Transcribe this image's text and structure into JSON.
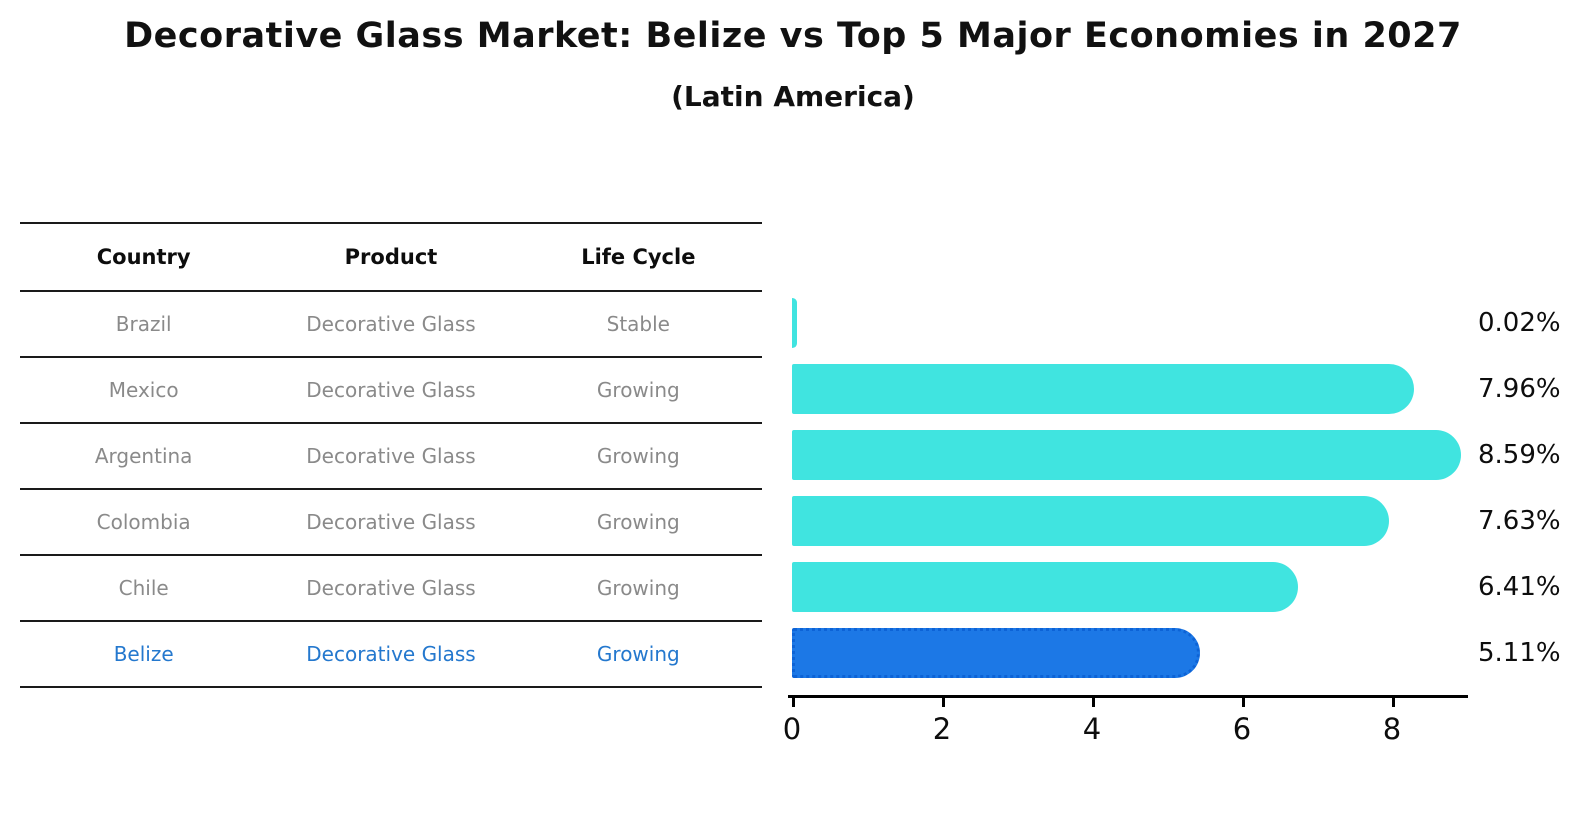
{
  "title": "Decorative Glass Market: Belize vs Top 5 Major Economies in 2027",
  "subtitle": "(Latin America)",
  "table": {
    "columns": [
      "Country",
      "Product",
      "Life Cycle"
    ]
  },
  "rows": [
    {
      "country": "Brazil",
      "product": "Decorative Glass",
      "life_cycle": "Stable",
      "value": 0.02,
      "value_label": "0.02%",
      "highlighted": false
    },
    {
      "country": "Mexico",
      "product": "Decorative Glass",
      "life_cycle": "Growing",
      "value": 7.96,
      "value_label": "7.96%",
      "highlighted": false
    },
    {
      "country": "Argentina",
      "product": "Decorative Glass",
      "life_cycle": "Growing",
      "value": 8.59,
      "value_label": "8.59%",
      "highlighted": false
    },
    {
      "country": "Colombia",
      "product": "Decorative Glass",
      "life_cycle": "Growing",
      "value": 7.63,
      "value_label": "7.63%",
      "highlighted": false
    },
    {
      "country": "Chile",
      "product": "Decorative Glass",
      "life_cycle": "Growing",
      "value": 6.41,
      "value_label": "6.41%",
      "highlighted": false
    },
    {
      "country": "Belize",
      "product": "Decorative Glass",
      "life_cycle": "Growing",
      "value": 5.11,
      "value_label": "5.11%",
      "highlighted": true
    }
  ],
  "chart_data": {
    "type": "bar",
    "orientation": "horizontal",
    "title": "Decorative Glass Market: Belize vs Top 5 Major Economies in 2027",
    "subtitle": "(Latin America)",
    "categories": [
      "Brazil",
      "Mexico",
      "Argentina",
      "Colombia",
      "Chile",
      "Belize"
    ],
    "values": [
      0.02,
      7.96,
      8.59,
      7.63,
      6.41,
      5.11
    ],
    "value_labels": [
      "0.02%",
      "7.96%",
      "8.59%",
      "7.63%",
      "6.41%",
      "5.11%"
    ],
    "xlabel": "",
    "ylabel": "",
    "xlim": [
      0,
      9
    ],
    "xticks": [
      0,
      2,
      4,
      6,
      8
    ],
    "grid": false,
    "legend": false,
    "highlight_index": 5
  },
  "colors": {
    "bar": "#40E4E0",
    "highlight_bar": "#1C78E6",
    "highlight_border": "#0d63d6",
    "row_text": "#8a8a8a",
    "highlight_text": "#2478ce",
    "header_text": "#0d0d0d",
    "axis": "#000000"
  }
}
